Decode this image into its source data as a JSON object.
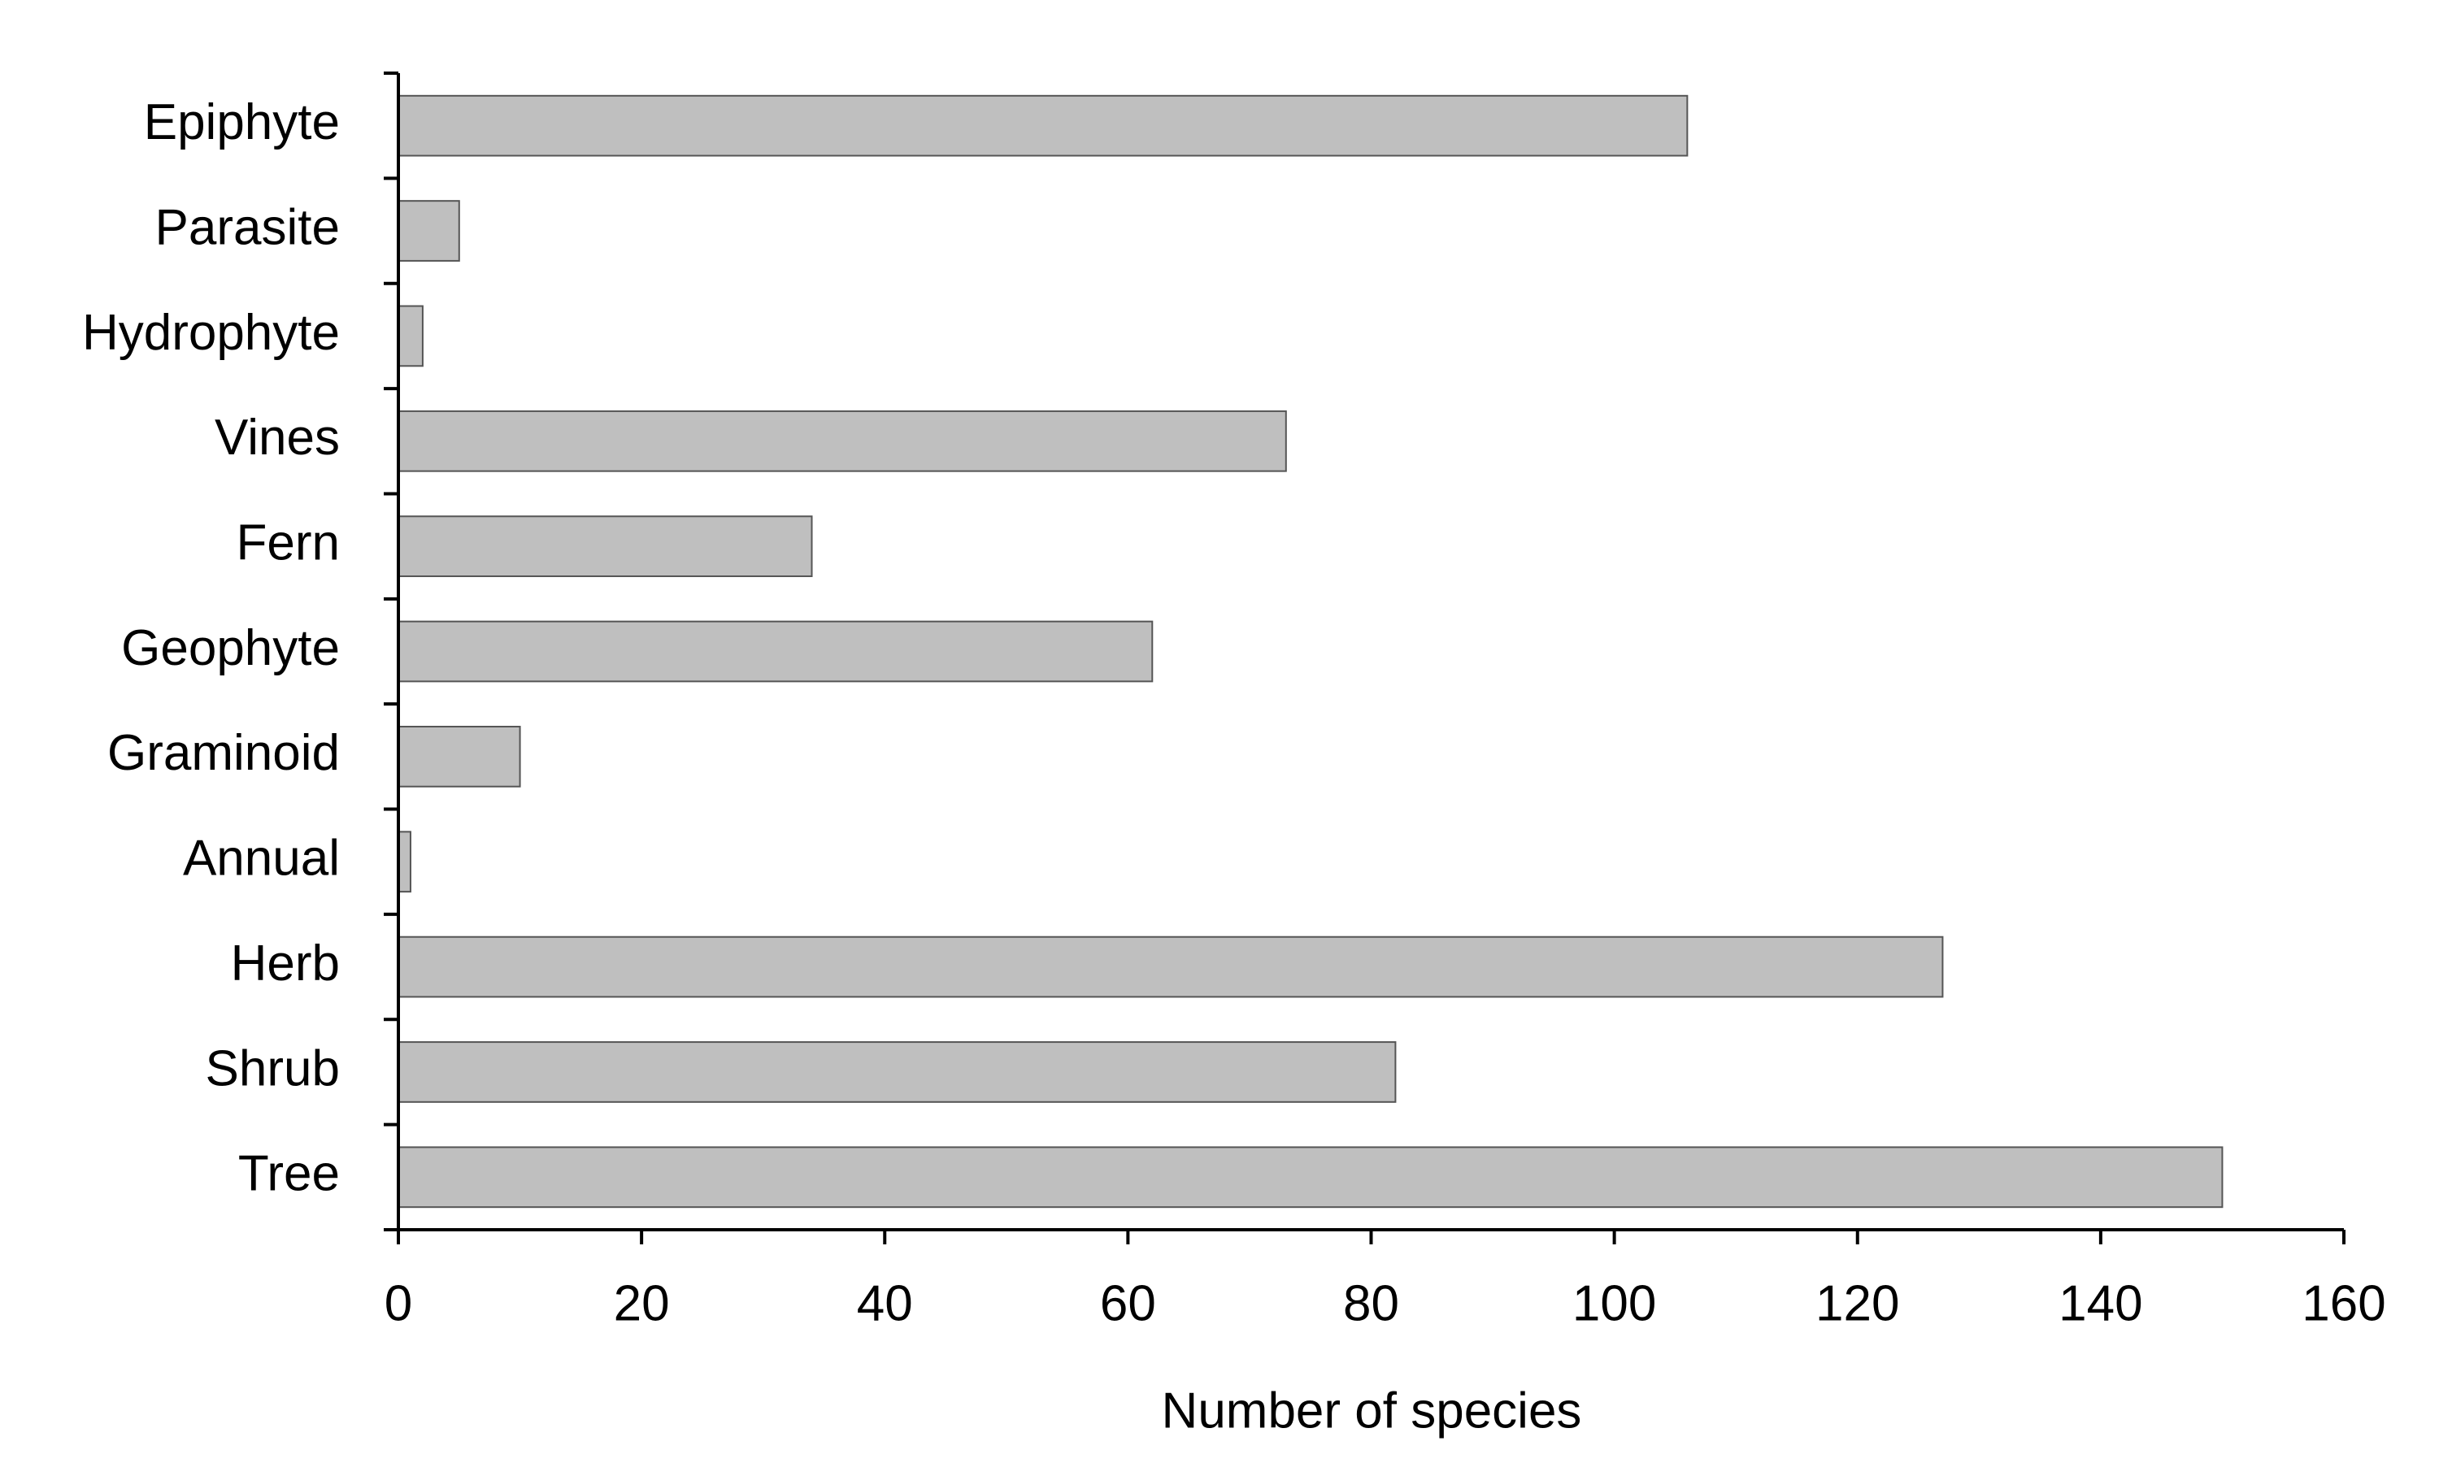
{
  "chart_data": {
    "type": "bar",
    "orientation": "horizontal",
    "categories": [
      "Epiphyte",
      "Parasite",
      "Hydrophyte",
      "Vines",
      "Fern",
      "Geophyte",
      "Graminoid",
      "Annual",
      "Herb",
      "Shrub",
      "Tree"
    ],
    "values": [
      106,
      5,
      2,
      73,
      34,
      62,
      10,
      1,
      127,
      82,
      150
    ],
    "color": "#bfbfbf",
    "x_label": "Number of species",
    "xlim": [
      0,
      160
    ],
    "xticks": [
      0,
      20,
      40,
      60,
      80,
      100,
      120,
      140,
      160
    ],
    "grid": false
  }
}
